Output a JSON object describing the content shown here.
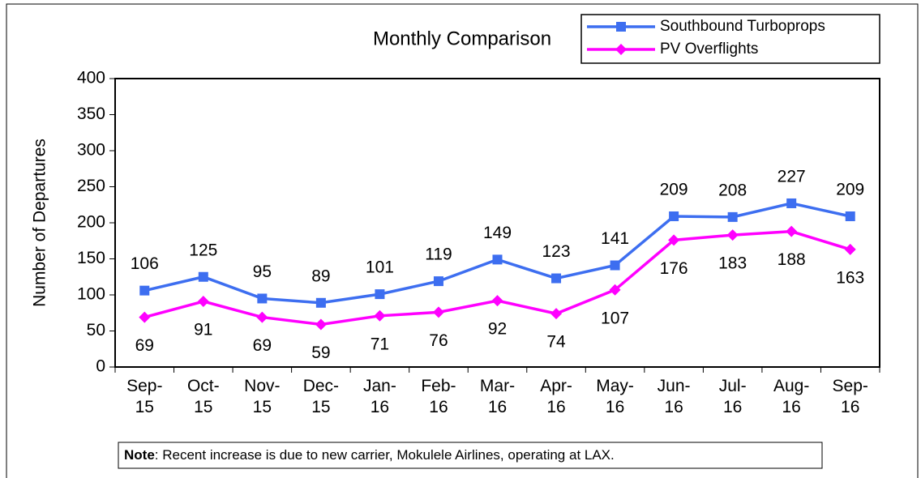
{
  "chart_data": {
    "type": "line",
    "title": "Monthly Comparison",
    "y_label": "Number of Departures",
    "categories": [
      "Sep-15",
      "Oct-15",
      "Nov-15",
      "Dec-15",
      "Jan-16",
      "Feb-16",
      "Mar-16",
      "Apr-16",
      "May-16",
      "Jun-16",
      "Jul-16",
      "Aug-16",
      "Sep-16"
    ],
    "series": [
      {
        "name": "Southbound Turboprops",
        "color": "#3d6ef0",
        "marker": "square",
        "label_position": "above",
        "values": [
          106,
          125,
          95,
          89,
          101,
          119,
          149,
          123,
          141,
          209,
          208,
          227,
          209
        ]
      },
      {
        "name": "PV Overflights",
        "color": "#ff00ff",
        "marker": "diamond",
        "label_position": "below",
        "values": [
          69,
          91,
          69,
          59,
          71,
          76,
          92,
          74,
          107,
          176,
          183,
          188,
          163
        ]
      }
    ],
    "ylim": [
      0,
      400
    ],
    "yticks": [
      0,
      50,
      100,
      150,
      200,
      250,
      300,
      350,
      400
    ],
    "legend": "top-right",
    "grid": false,
    "note": {
      "label": "Note",
      "text": ": Recent increase is due to new carrier, Mokulele Airlines, operating at LAX."
    }
  }
}
